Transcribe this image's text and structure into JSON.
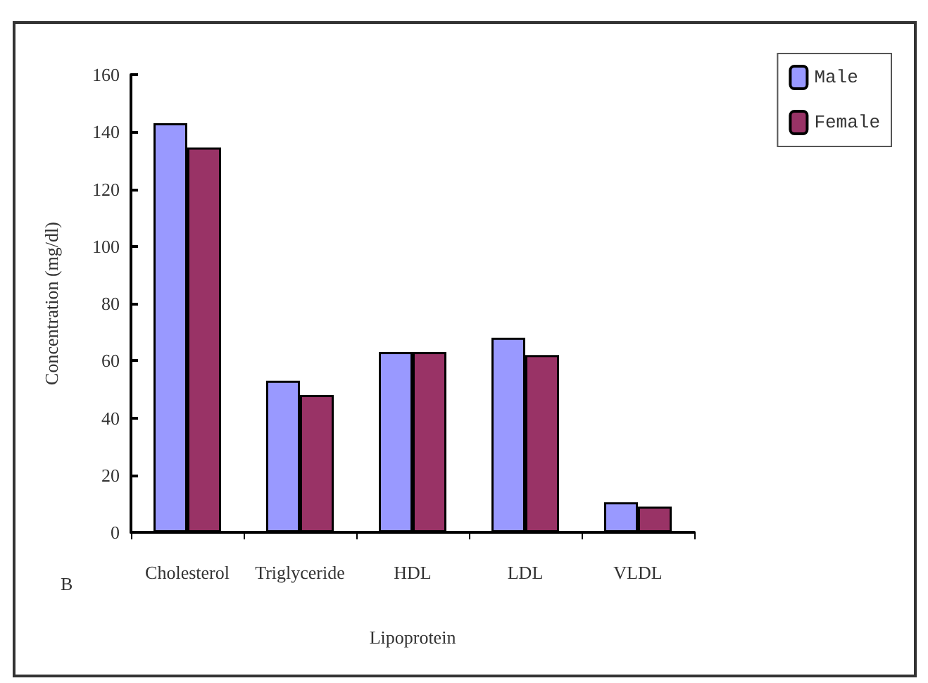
{
  "chart_data": {
    "type": "bar",
    "xlabel": "Lipoprotein",
    "ylabel": "Concentration (mg/dl)",
    "annotations": [
      "B"
    ],
    "categories": [
      "Cholesterol",
      "Triglyceride",
      "HDL",
      "LDL",
      "VLDL"
    ],
    "series": [
      {
        "name": "Male",
        "color": "#9999ff",
        "values": [
          143,
          53,
          63,
          68,
          10.5
        ]
      },
      {
        "name": "Female",
        "color": "#993366",
        "values": [
          134.5,
          48,
          63,
          62,
          9
        ]
      }
    ],
    "ylim": [
      0,
      160
    ],
    "yticks": [
      0,
      20,
      40,
      60,
      80,
      100,
      120,
      140,
      160
    ],
    "grid": false,
    "legend": "top right"
  }
}
